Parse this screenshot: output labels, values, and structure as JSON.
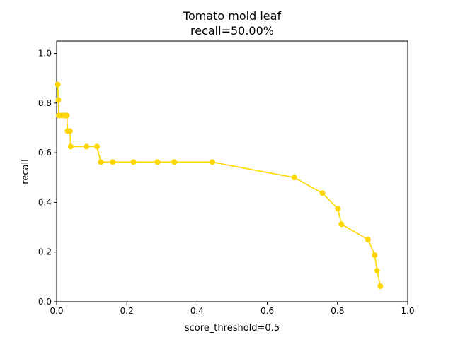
{
  "chart_data": {
    "type": "line",
    "title": "Tomato mold leaf",
    "subtitle": "recall=50.00%",
    "xlabel": "score_threshold=0.5",
    "ylabel": "recall",
    "xlim": [
      0,
      1.0
    ],
    "ylim": [
      0,
      1.05
    ],
    "x_ticks": [
      "0.0",
      "0.2",
      "0.4",
      "0.6",
      "0.8",
      "1.0"
    ],
    "y_ticks": [
      "0.0",
      "0.2",
      "0.4",
      "0.6",
      "0.8",
      "1.0"
    ],
    "grid": false,
    "series": [
      {
        "color": "#FFD700",
        "marker": "circle",
        "points": [
          [
            0.003,
            0.875
          ],
          [
            0.005,
            0.8125
          ],
          [
            0.006,
            0.75
          ],
          [
            0.012,
            0.75
          ],
          [
            0.018,
            0.75
          ],
          [
            0.024,
            0.75
          ],
          [
            0.029,
            0.75
          ],
          [
            0.031,
            0.6875
          ],
          [
            0.038,
            0.6875
          ],
          [
            0.04,
            0.625
          ],
          [
            0.085,
            0.625
          ],
          [
            0.115,
            0.625
          ],
          [
            0.126,
            0.5625
          ],
          [
            0.16,
            0.5625
          ],
          [
            0.219,
            0.5625
          ],
          [
            0.287,
            0.5625
          ],
          [
            0.335,
            0.5625
          ],
          [
            0.443,
            0.5625
          ],
          [
            0.677,
            0.5
          ],
          [
            0.757,
            0.4375
          ],
          [
            0.801,
            0.375
          ],
          [
            0.811,
            0.3125
          ],
          [
            0.887,
            0.25
          ],
          [
            0.906,
            0.1875
          ],
          [
            0.913,
            0.125
          ],
          [
            0.922,
            0.0625
          ]
        ]
      }
    ]
  }
}
